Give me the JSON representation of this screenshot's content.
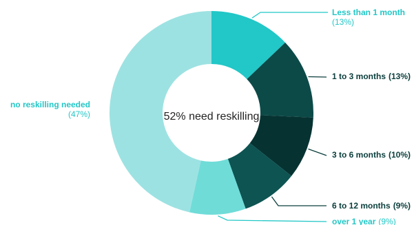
{
  "chart_data": {
    "type": "pie",
    "donut": true,
    "center_label": "52% need reskilling",
    "slices": [
      {
        "name": "Less than 1 month",
        "value": 13,
        "pct_label": "(13%)",
        "color": "#22c7c7"
      },
      {
        "name": "1 to 3 months",
        "value": 13,
        "pct_label": "(13%)",
        "color": "#0c4a48"
      },
      {
        "name": "3 to 6 months",
        "value": 10,
        "pct_label": "(10%)",
        "color": "#063332"
      },
      {
        "name": "6 to 12 months",
        "value": 9,
        "pct_label": "(9%)",
        "color": "#0d5452"
      },
      {
        "name": "over 1 year",
        "value": 9,
        "pct_label": "(9%)",
        "color": "#6fdcd8"
      },
      {
        "name": "no reskilling needed",
        "value": 47,
        "pct_label": "(47%)",
        "color": "#9de2e2"
      }
    ],
    "label_colors": {
      "light": "#22c7c7",
      "dark": "#0a3d3b"
    }
  }
}
